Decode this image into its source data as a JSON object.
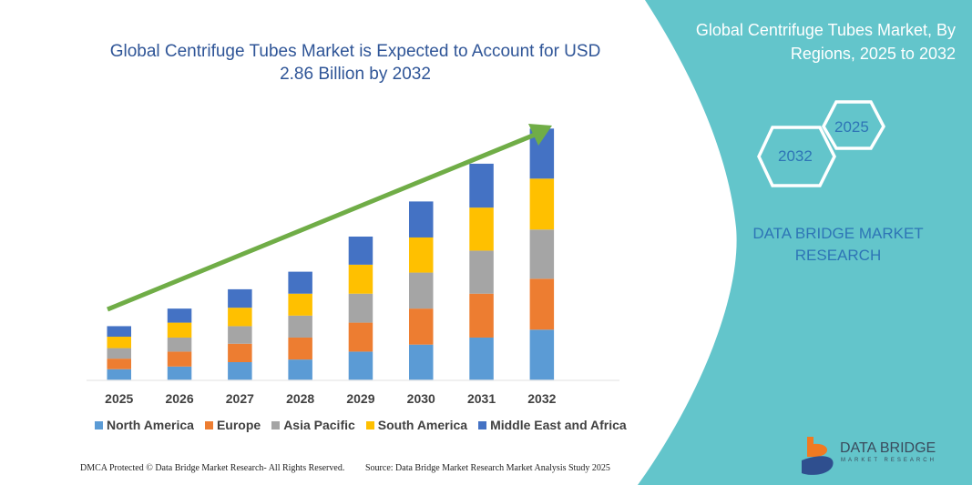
{
  "title": "Global Centrifuge Tubes Market is Expected to Account for USD 2.86 Billion by 2032",
  "side_panel": {
    "title": "Global Centrifuge Tubes Market, By Regions, 2025 to 2032",
    "hex_left": "2032",
    "hex_right": "2025",
    "brand_text": "DATA BRIDGE MARKET RESEARCH",
    "logo_text": "DATA BRIDGE",
    "logo_sub": "MARKET RESEARCH",
    "color": "#63c5cb"
  },
  "footer": {
    "left": "DMCA Protected © Data Bridge Market Research- All Rights Reserved.",
    "right": "Source: Data Bridge Market Research Market Analysis Study 2025"
  },
  "chart_data": {
    "type": "bar",
    "stacked": true,
    "title": "Global Centrifuge Tubes Market is Expected to Account for USD 2.86 Billion by 2032",
    "categories": [
      "2025",
      "2026",
      "2027",
      "2028",
      "2029",
      "2030",
      "2031",
      "2032"
    ],
    "series": [
      {
        "name": "North America",
        "color": "#5b9bd5",
        "values": [
          0.12,
          0.15,
          0.2,
          0.23,
          0.32,
          0.4,
          0.48,
          0.57
        ]
      },
      {
        "name": "Europe",
        "color": "#ed7d31",
        "values": [
          0.12,
          0.17,
          0.21,
          0.25,
          0.33,
          0.41,
          0.5,
          0.58
        ]
      },
      {
        "name": "Asia Pacific",
        "color": "#a5a5a5",
        "values": [
          0.12,
          0.16,
          0.2,
          0.25,
          0.33,
          0.41,
          0.49,
          0.56
        ]
      },
      {
        "name": "South America",
        "color": "#ffc000",
        "values": [
          0.13,
          0.17,
          0.21,
          0.25,
          0.33,
          0.4,
          0.49,
          0.58
        ]
      },
      {
        "name": "Middle East and Africa",
        "color": "#4472c4",
        "values": [
          0.12,
          0.16,
          0.21,
          0.25,
          0.32,
          0.41,
          0.5,
          0.57
        ]
      }
    ],
    "ylim": [
      0,
      2.86
    ],
    "legend": "bottom",
    "grid": false,
    "trend_arrow_color": "#70ad47"
  }
}
